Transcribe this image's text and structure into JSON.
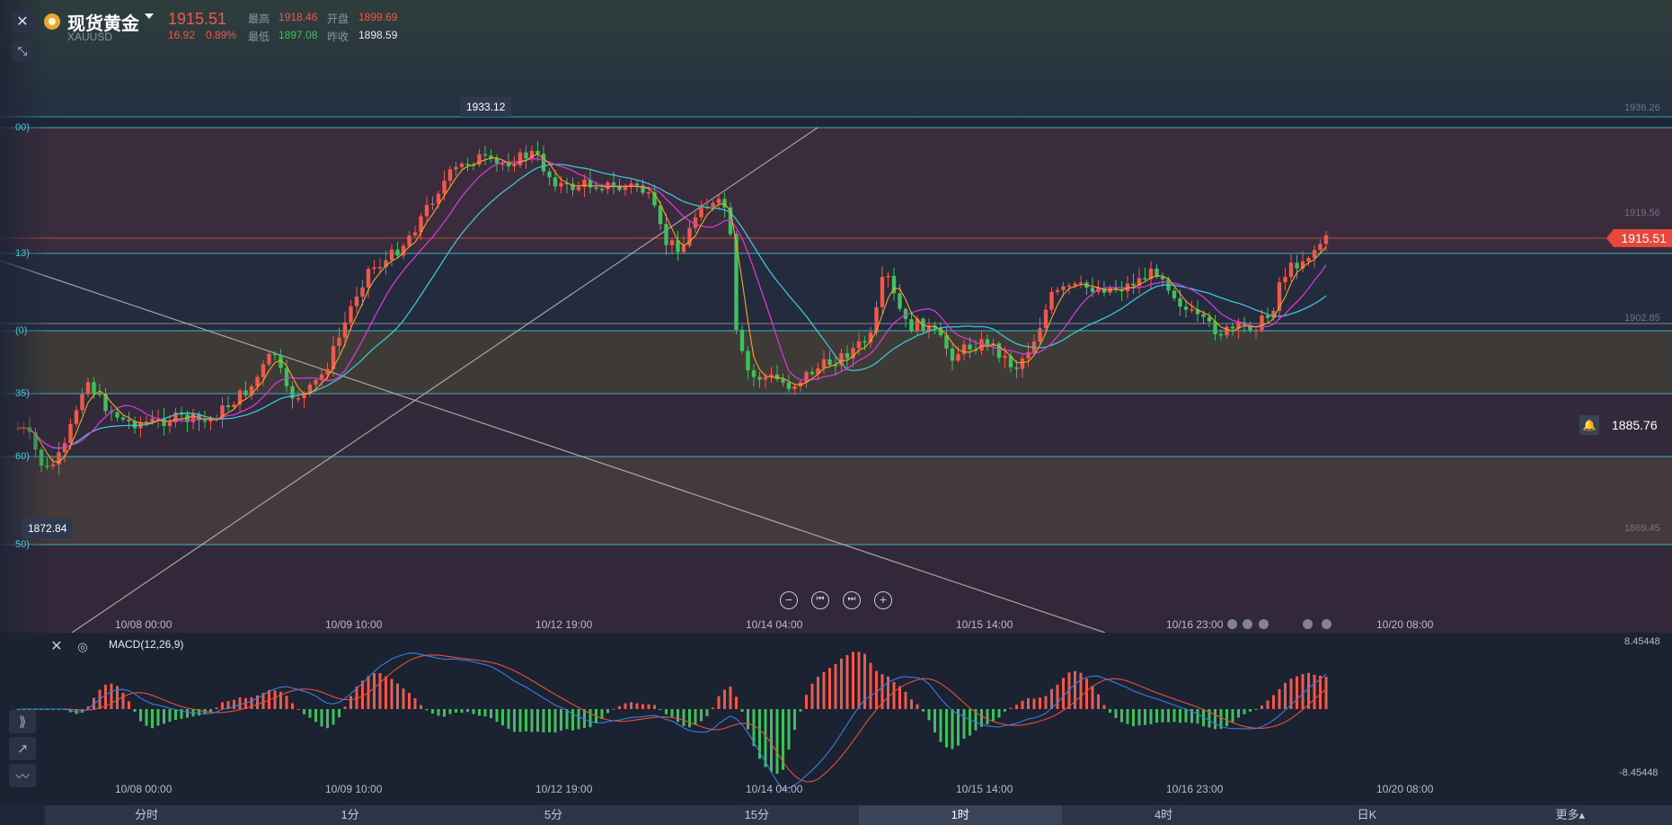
{
  "header": {
    "name": "现货黄金",
    "code": "XAUUSD",
    "price": "1915.51",
    "change": "16.92",
    "change_pct": "0.89%",
    "high_label": "最高",
    "high": "1918.46",
    "open_label": "开盘",
    "open": "1899.69",
    "low_label": "最低",
    "low": "1897.08",
    "prev_close_label": "昨收",
    "prev_close": "1898.59"
  },
  "price_axis": [
    "1936.26",
    "1919.56",
    "1902.85",
    "1869.45"
  ],
  "fib_labels": [
    "00)",
    "13)",
    "(0)",
    "35)",
    "60)",
    "50)"
  ],
  "x_labels": [
    "10/08 00:00",
    "10/09 10:00",
    "10/12 19:00",
    "10/14 04:00",
    "10/15 14:00",
    "10/16 23:00",
    "10/20 08:00"
  ],
  "annotations": {
    "high_tag": "1933.12",
    "low_tag": "1872.84",
    "last_price": "1915.51",
    "alert_price": "1885.76"
  },
  "macd": {
    "title": "MACD(12,26,9)",
    "max": "8.45448",
    "min": "-8.45448"
  },
  "tabs": [
    {
      "label": "分时"
    },
    {
      "label": "1分"
    },
    {
      "label": "5分"
    },
    {
      "label": "15分"
    },
    {
      "label": "1时",
      "active": true
    },
    {
      "label": "4时"
    },
    {
      "label": "日K"
    },
    {
      "label": "更多▴"
    }
  ],
  "colors": {
    "up": "#f0584b",
    "down": "#3fc05a",
    "fib_line": "#3ec9d6",
    "ma_fast": "#f5a623",
    "ma_mid": "#d23ad6",
    "ma_slow": "#37c6d8",
    "dif": "#3a7de0",
    "dea": "#e8503a"
  },
  "icons": [
    "close-icon",
    "gold-coin-icon",
    "pin-icon",
    "zoom-out-icon",
    "prev-icon",
    "next-icon",
    "zoom-in-icon",
    "settings-icon",
    "bell-icon"
  ]
}
